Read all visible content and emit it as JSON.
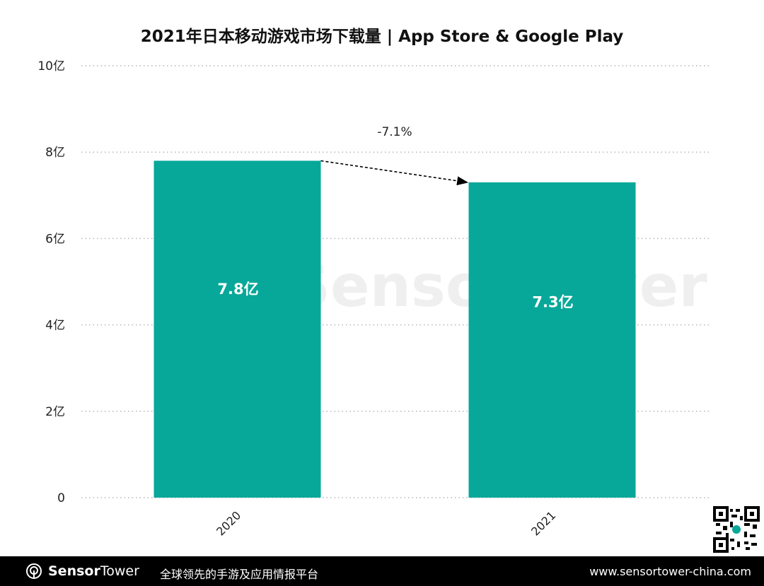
{
  "title": "2021年日本移动游戏市场下载量 | App Store & Google Play",
  "chart_data": {
    "type": "bar",
    "title": "2021年日本移动游戏市场下载量 | App Store & Google Play",
    "categories": [
      "2020",
      "2021"
    ],
    "values": [
      7.8,
      7.3
    ],
    "data_labels": [
      "7.8亿",
      "7.3亿"
    ],
    "unit": "亿",
    "ylim": [
      0,
      10
    ],
    "yticks": [
      0,
      2,
      4,
      6,
      8,
      10
    ],
    "ytick_labels": [
      "0",
      "2亿",
      "4亿",
      "6亿",
      "8亿",
      "10亿"
    ],
    "xlabel": "",
    "ylabel": "",
    "grid": "horizontal dotted",
    "change_annotation": "-7.1%",
    "bar_color": "#07a899"
  },
  "watermark": "SensorTower",
  "footer": {
    "brand_bold": "Sensor",
    "brand_regular": "Tower",
    "slogan": "全球领先的手游及应用情报平台",
    "url": "www.sensortower-china.com"
  },
  "colors": {
    "bar": "#07a899",
    "footer_bg": "#000000"
  }
}
